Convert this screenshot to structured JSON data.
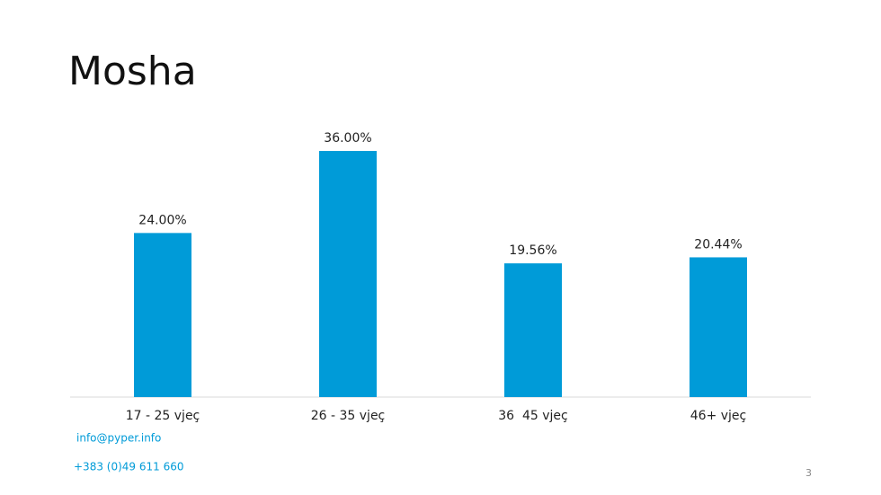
{
  "chart_data": {
    "type": "bar",
    "title": "Mosha",
    "categories": [
      "17 - 25 vjeç",
      "26 - 35 vjeç",
      "36  45 vjeç",
      "46+ vjeç"
    ],
    "values": [
      24,
      36,
      19.56,
      20.44
    ],
    "value_labels": [
      "24.00%",
      "36.00%",
      "19.56%",
      "20.44%"
    ],
    "color": "#009bd8",
    "ylim": [
      0,
      40
    ]
  },
  "footer": {
    "email": "info@pyper.info",
    "phone": "+383 (0)49 611 660",
    "page_number": "3"
  }
}
